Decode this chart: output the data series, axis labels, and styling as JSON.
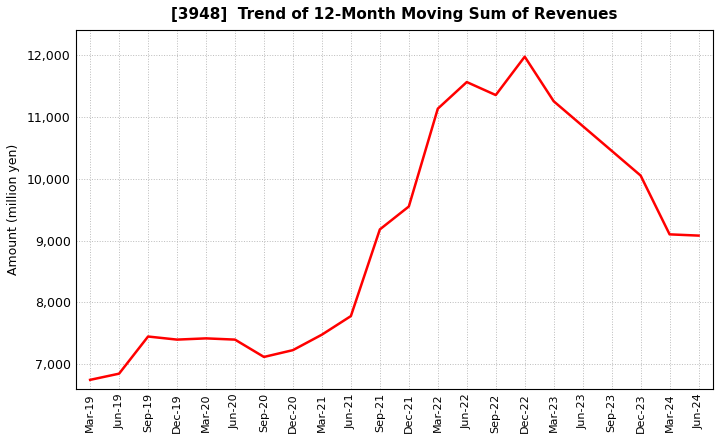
{
  "title": "[3948]  Trend of 12-Month Moving Sum of Revenues",
  "ylabel": "Amount (million yen)",
  "line_color": "#ff0000",
  "line_width": 1.8,
  "background_color": "#ffffff",
  "grid_color": "#bbbbbb",
  "ylim": [
    6600,
    12400
  ],
  "yticks": [
    7000,
    8000,
    9000,
    10000,
    11000,
    12000
  ],
  "labels": [
    "Mar-19",
    "Jun-19",
    "Sep-19",
    "Dec-19",
    "Mar-20",
    "Jun-20",
    "Sep-20",
    "Dec-20",
    "Mar-21",
    "Jun-21",
    "Sep-21",
    "Dec-21",
    "Mar-22",
    "Jun-22",
    "Sep-22",
    "Dec-22",
    "Mar-23",
    "Jun-23",
    "Sep-23",
    "Dec-23",
    "Mar-24",
    "Jun-24"
  ],
  "values": [
    6750,
    6850,
    7450,
    7400,
    7420,
    7400,
    7120,
    7230,
    7480,
    7780,
    9180,
    9550,
    11130,
    11560,
    11350,
    11970,
    11250,
    10850,
    10450,
    10050,
    9100,
    9080
  ]
}
